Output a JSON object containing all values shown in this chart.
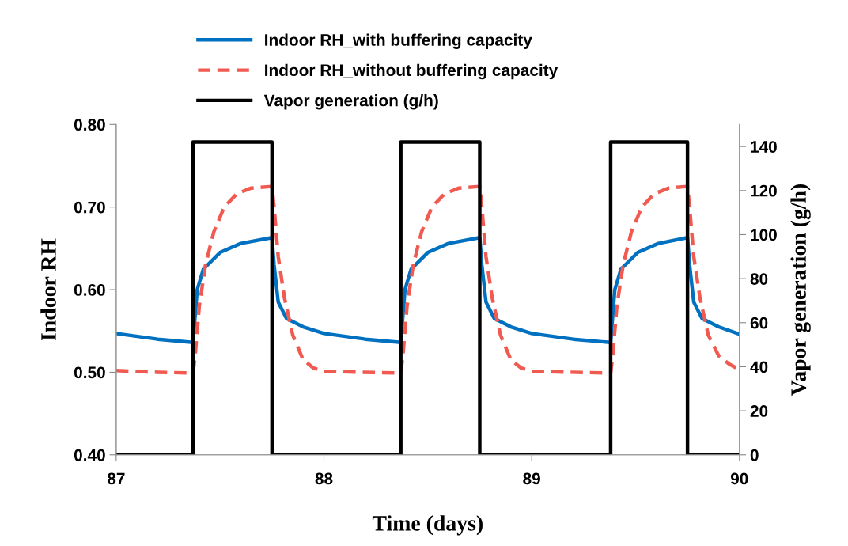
{
  "chart_data": {
    "type": "line",
    "xlabel": "Time (days)",
    "ylabel": "Indoor RH",
    "y2label": "Vapor generation (g/h)",
    "xlim": [
      87,
      90
    ],
    "xticks": [
      87,
      88,
      89,
      90
    ],
    "ylim": [
      0.4,
      0.8
    ],
    "yticks": [
      {
        "value": 0.4,
        "label": "0.40"
      },
      {
        "value": 0.5,
        "label": "0.50"
      },
      {
        "value": 0.6,
        "label": "0.60"
      },
      {
        "value": 0.7,
        "label": "0.70"
      },
      {
        "value": 0.8,
        "label": "0.80"
      }
    ],
    "y2lim": [
      0,
      150
    ],
    "y2ticks": [
      0,
      20,
      40,
      60,
      80,
      100,
      120,
      140
    ],
    "grid": false,
    "legend": "top",
    "marker": "none",
    "series": [
      {
        "name": "Indoor RH_with buffering capacity",
        "color": "#0070c0",
        "line_style": "solid",
        "x": [
          87.0,
          87.2,
          87.37,
          87.39,
          87.42,
          87.5,
          87.6,
          87.75,
          87.76,
          87.78,
          87.82,
          87.9,
          88.0,
          88.2,
          88.37,
          88.39,
          88.42,
          88.5,
          88.6,
          88.75,
          88.76,
          88.78,
          88.82,
          88.9,
          89.0,
          89.2,
          89.38,
          89.4,
          89.43,
          89.51,
          89.61,
          89.75,
          89.76,
          89.78,
          89.82,
          89.9,
          90.0
        ],
        "values": [
          0.547,
          0.54,
          0.536,
          0.6,
          0.625,
          0.645,
          0.656,
          0.663,
          0.63,
          0.585,
          0.565,
          0.555,
          0.547,
          0.54,
          0.536,
          0.6,
          0.625,
          0.645,
          0.656,
          0.663,
          0.63,
          0.585,
          0.565,
          0.555,
          0.547,
          0.54,
          0.536,
          0.6,
          0.625,
          0.645,
          0.656,
          0.663,
          0.63,
          0.585,
          0.565,
          0.555,
          0.546
        ]
      },
      {
        "name": "Indoor RH_without buffering capacity",
        "color": "#f05a50",
        "line_style": "dashed",
        "x": [
          87.0,
          87.2,
          87.37,
          87.38,
          87.4,
          87.43,
          87.47,
          87.52,
          87.58,
          87.65,
          87.75,
          87.76,
          87.78,
          87.81,
          87.85,
          87.9,
          87.95,
          88.0,
          88.37,
          88.38,
          88.4,
          88.43,
          88.47,
          88.52,
          88.58,
          88.65,
          88.75,
          88.76,
          88.78,
          88.81,
          88.85,
          88.9,
          88.95,
          89.0,
          89.38,
          89.39,
          89.41,
          89.44,
          89.48,
          89.53,
          89.59,
          89.66,
          89.75,
          89.76,
          89.78,
          89.81,
          89.85,
          89.9,
          89.95,
          90.0
        ],
        "values": [
          0.502,
          0.5,
          0.499,
          0.52,
          0.58,
          0.63,
          0.67,
          0.7,
          0.716,
          0.723,
          0.725,
          0.7,
          0.64,
          0.59,
          0.545,
          0.515,
          0.505,
          0.501,
          0.499,
          0.52,
          0.58,
          0.63,
          0.67,
          0.7,
          0.716,
          0.723,
          0.725,
          0.7,
          0.64,
          0.59,
          0.545,
          0.515,
          0.505,
          0.501,
          0.499,
          0.52,
          0.58,
          0.63,
          0.67,
          0.7,
          0.716,
          0.723,
          0.725,
          0.7,
          0.64,
          0.59,
          0.545,
          0.52,
          0.51,
          0.503
        ]
      },
      {
        "name": "Vapor generation (g/h)",
        "color": "#000000",
        "line_style": "solid",
        "axis": "y2",
        "x": [
          87.0,
          87.37,
          87.37,
          87.75,
          87.75,
          88.37,
          88.37,
          88.75,
          88.75,
          89.38,
          89.38,
          89.75,
          89.75,
          90.0
        ],
        "values": [
          0,
          0,
          142,
          142,
          0,
          0,
          142,
          142,
          0,
          0,
          142,
          142,
          0,
          0
        ]
      }
    ]
  }
}
